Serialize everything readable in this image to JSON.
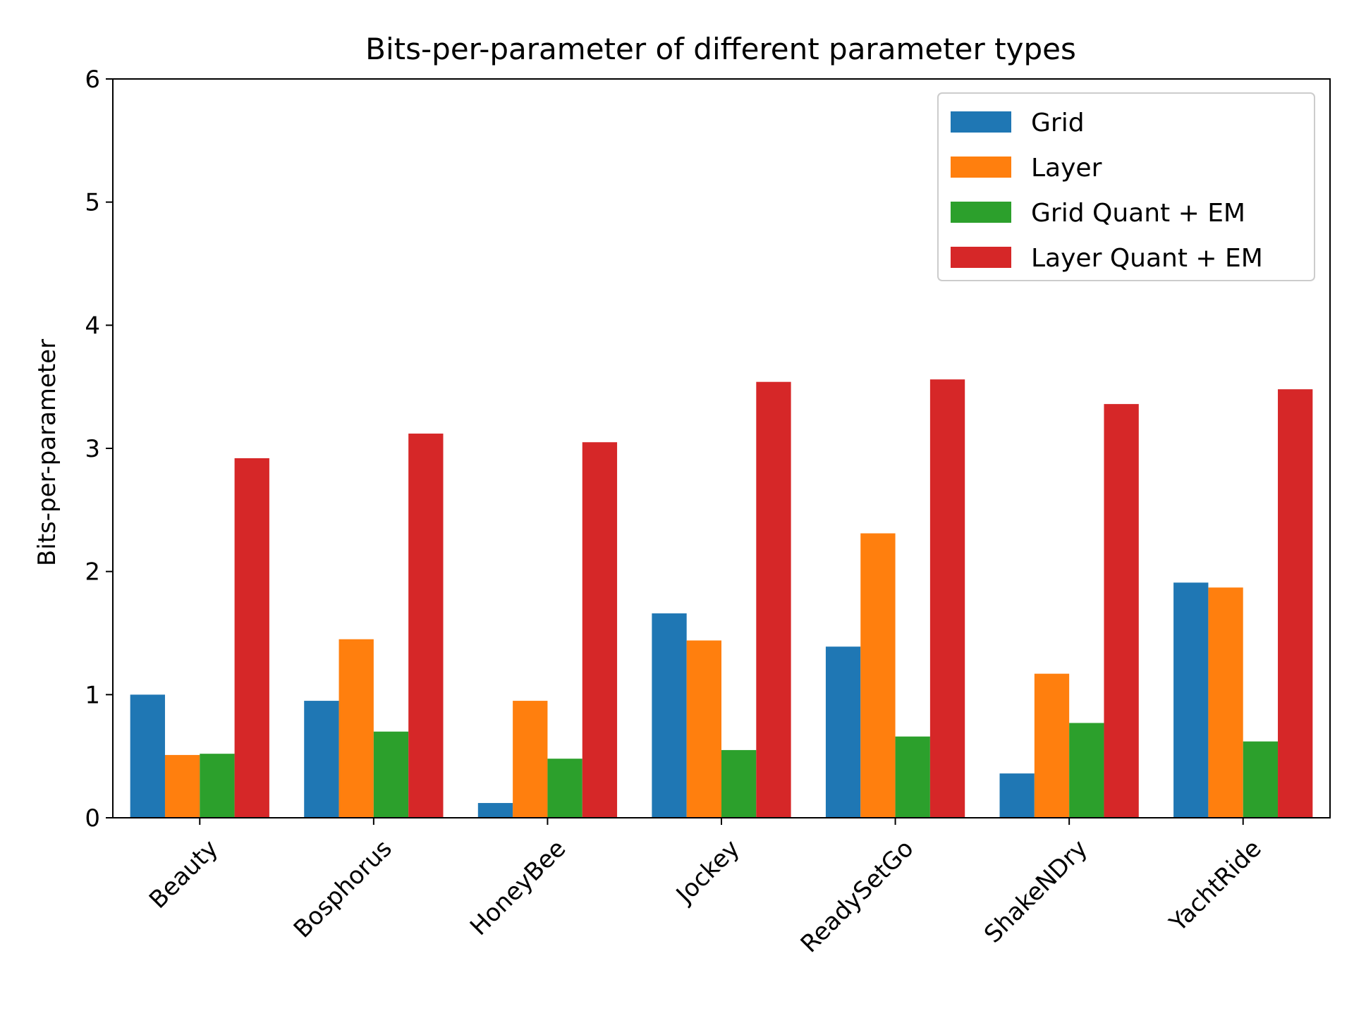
{
  "chart_data": {
    "type": "bar",
    "title": "Bits-per-parameter of different parameter types",
    "xlabel": "",
    "ylabel": "Bits-per-parameter",
    "ylim": [
      0,
      6
    ],
    "yticks": [
      0,
      1,
      2,
      3,
      4,
      5,
      6
    ],
    "grid": false,
    "legend_position": "top-right",
    "categories": [
      "Beauty",
      "Bosphorus",
      "HoneyBee",
      "Jockey",
      "ReadySetGo",
      "ShakeNDry",
      "YachtRide"
    ],
    "series": [
      {
        "name": "Grid",
        "color": "#1f77b4",
        "values": [
          1.0,
          0.95,
          0.12,
          1.66,
          1.39,
          0.36,
          1.91
        ]
      },
      {
        "name": "Layer",
        "color": "#ff7f0e",
        "values": [
          0.51,
          1.45,
          0.95,
          1.44,
          2.31,
          1.17,
          1.87
        ]
      },
      {
        "name": "Grid Quant + EM",
        "color": "#2ca02c",
        "values": [
          0.52,
          0.7,
          0.48,
          0.55,
          0.66,
          0.77,
          0.62
        ]
      },
      {
        "name": "Layer Quant + EM",
        "color": "#d62728",
        "values": [
          2.92,
          3.12,
          3.05,
          3.54,
          3.56,
          3.36,
          3.48
        ]
      }
    ]
  }
}
